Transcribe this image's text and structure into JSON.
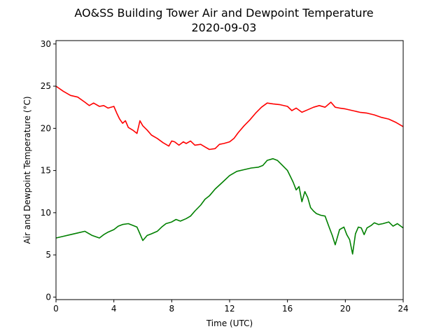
{
  "chart_data": {
    "type": "line",
    "title": "AO&SS Building Tower Air and Dewpoint Temperature",
    "subtitle": "2020-09-03",
    "xlabel": "Time (UTC)",
    "ylabel": "Air and Dewpoint Temperature (°C)",
    "xlim": [
      0,
      24
    ],
    "ylim": [
      -0.3,
      30.4
    ],
    "xticks": [
      0,
      4,
      8,
      12,
      16,
      20,
      24
    ],
    "yticks": [
      0,
      5,
      10,
      15,
      20,
      25,
      30
    ],
    "grid": false,
    "legend": "none",
    "series": [
      {
        "color": "#ff0000",
        "x": [
          0,
          0.5,
          1,
          1.5,
          2,
          2.3,
          2.6,
          3,
          3.3,
          3.6,
          4,
          4.2,
          4.4,
          4.6,
          4.8,
          5,
          5.3,
          5.6,
          5.8,
          6,
          6.3,
          6.6,
          7,
          7.4,
          7.8,
          8,
          8.2,
          8.5,
          8.8,
          9,
          9.3,
          9.6,
          10,
          10.3,
          10.6,
          11,
          11.3,
          11.6,
          12,
          12.3,
          12.6,
          13,
          13.4,
          13.8,
          14.2,
          14.6,
          15,
          15.5,
          16,
          16.3,
          16.6,
          17,
          17.4,
          17.8,
          18.2,
          18.6,
          19,
          19.3,
          19.6,
          20,
          20.5,
          21,
          21.5,
          22,
          22.5,
          23,
          23.5,
          24
        ],
        "y": [
          25.0,
          24.4,
          23.9,
          23.7,
          23.1,
          22.7,
          23.0,
          22.6,
          22.7,
          22.4,
          22.6,
          21.8,
          21.1,
          20.6,
          20.9,
          20.1,
          19.8,
          19.4,
          20.9,
          20.3,
          19.8,
          19.2,
          18.8,
          18.3,
          17.9,
          18.5,
          18.4,
          18.0,
          18.4,
          18.2,
          18.5,
          18.0,
          18.1,
          17.8,
          17.5,
          17.6,
          18.1,
          18.2,
          18.4,
          18.8,
          19.5,
          20.3,
          21.0,
          21.8,
          22.5,
          23.0,
          22.9,
          22.8,
          22.6,
          22.1,
          22.4,
          21.9,
          22.2,
          22.5,
          22.7,
          22.5,
          23.1,
          22.5,
          22.4,
          22.3,
          22.1,
          21.9,
          21.8,
          21.6,
          21.3,
          21.1,
          20.7,
          20.2
        ]
      },
      {
        "color": "#008000",
        "x": [
          0,
          0.5,
          1,
          1.5,
          2,
          2.5,
          3,
          3.3,
          3.6,
          4,
          4.3,
          4.6,
          5,
          5.3,
          5.6,
          5.8,
          6,
          6.3,
          6.6,
          7,
          7.3,
          7.6,
          8,
          8.3,
          8.6,
          9,
          9.3,
          9.6,
          10,
          10.3,
          10.6,
          11,
          11.5,
          12,
          12.5,
          13,
          13.5,
          14,
          14.3,
          14.6,
          15,
          15.3,
          15.6,
          16,
          16.2,
          16.4,
          16.6,
          16.8,
          17,
          17.2,
          17.4,
          17.6,
          17.8,
          18,
          18.3,
          18.6,
          18.9,
          19.1,
          19.3,
          19.6,
          19.9,
          20.1,
          20.3,
          20.5,
          20.7,
          20.9,
          21.1,
          21.3,
          21.5,
          21.8,
          22,
          22.3,
          22.6,
          23,
          23.3,
          23.6,
          24
        ],
        "y": [
          7.0,
          7.2,
          7.4,
          7.6,
          7.8,
          7.3,
          7.0,
          7.4,
          7.7,
          8.0,
          8.4,
          8.6,
          8.7,
          8.5,
          8.3,
          7.5,
          6.7,
          7.3,
          7.5,
          7.8,
          8.3,
          8.7,
          8.9,
          9.2,
          9.0,
          9.3,
          9.6,
          10.2,
          10.9,
          11.6,
          12.0,
          12.8,
          13.6,
          14.4,
          14.9,
          15.1,
          15.3,
          15.4,
          15.6,
          16.2,
          16.4,
          16.2,
          15.7,
          15.0,
          14.3,
          13.6,
          12.7,
          13.1,
          11.3,
          12.5,
          11.8,
          10.6,
          10.2,
          9.9,
          9.7,
          9.6,
          8.2,
          7.3,
          6.2,
          8.0,
          8.3,
          7.4,
          6.8,
          5.1,
          7.5,
          8.3,
          8.2,
          7.4,
          8.2,
          8.5,
          8.8,
          8.6,
          8.7,
          8.9,
          8.4,
          8.7,
          8.2
        ]
      }
    ]
  }
}
